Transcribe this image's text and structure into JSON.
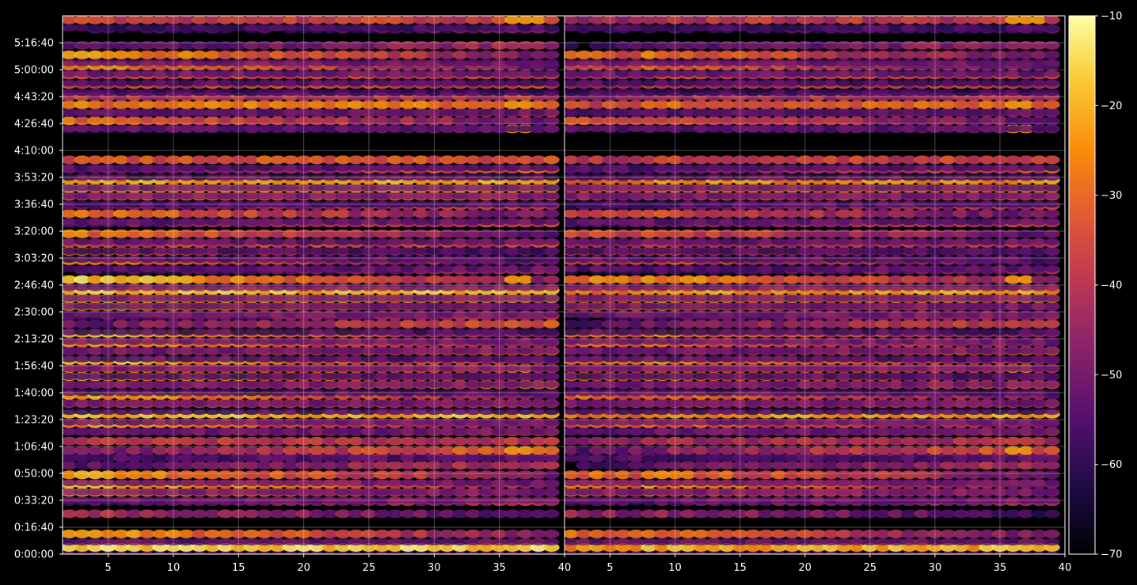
{
  "chart_data": {
    "type": "heatmap",
    "title": "",
    "xlabel": "",
    "ylabel": "",
    "panels": [
      {
        "name": "",
        "x_range": [
          1.5,
          40
        ],
        "x_ticks": [
          5,
          10,
          15,
          20,
          25,
          30,
          35,
          40
        ],
        "x_tick_labels": [
          "5",
          "10",
          "15",
          "20",
          "25",
          "30",
          "35",
          "40"
        ]
      },
      {
        "name": "",
        "x_range": [
          1.5,
          40
        ],
        "x_ticks": [
          5,
          10,
          15,
          20,
          25,
          30,
          35,
          40
        ],
        "x_tick_labels": [
          "5",
          "10",
          "15",
          "20",
          "25",
          "30",
          "35",
          "40"
        ]
      }
    ],
    "y_unit": "seconds",
    "y_range": [
      0,
      20000
    ],
    "y_ticks": [
      0,
      1000,
      2000,
      3000,
      4000,
      5000,
      6000,
      7000,
      8000,
      9000,
      10000,
      11000,
      12000,
      13000,
      14000,
      15000,
      16000,
      17000,
      18000,
      19000
    ],
    "y_tick_labels": [
      "0:00:00",
      "0:16:40",
      "0:33:20",
      "0:50:00",
      "1:06:40",
      "1:23:20",
      "1:40:00",
      "1:56:40",
      "2:13:20",
      "2:30:00",
      "2:46:40",
      "3:03:20",
      "3:20:00",
      "3:36:40",
      "3:53:20",
      "4:10:00",
      "4:26:40",
      "4:43:20",
      "5:00:00",
      "5:16:40"
    ],
    "grid": true,
    "colormap": "inferno",
    "colorbar": {
      "range": [
        -70,
        -10
      ],
      "ticks": [
        -70,
        -60,
        -50,
        -40,
        -30,
        -20,
        -10
      ],
      "tick_labels": [
        "−70",
        "−60",
        "−50",
        "−40",
        "−30",
        "−20",
        "−10"
      ]
    },
    "rows": [
      {
        "t": 250,
        "strength": 0.9,
        "profile": "flat",
        "hot": [
          36,
          37,
          38
        ]
      },
      {
        "t": 750,
        "strength": 0.8,
        "profile": "decay"
      },
      {
        "t": 1500,
        "strength": 0.5,
        "profile": "decay"
      },
      {
        "t": 1950,
        "strength": 0.4,
        "profile": "rise"
      },
      {
        "t": 2300,
        "strength": 0.82,
        "profile": "decay"
      },
      {
        "t": 2600,
        "strength": 0.88,
        "profile": "decay"
      },
      {
        "t": 2950,
        "strength": 0.82,
        "profile": "decay"
      },
      {
        "t": 3300,
        "strength": 0.45,
        "profile": "rise"
      },
      {
        "t": 3600,
        "strength": 0.35,
        "profile": "rise"
      },
      {
        "t": 3850,
        "strength": 0.6,
        "profile": "rise",
        "hot": [
          36,
          37
        ]
      },
      {
        "t": 4200,
        "strength": 0.5,
        "profile": "flat"
      },
      {
        "t": 4550,
        "strength": 0.45,
        "profile": "rise"
      },
      {
        "t": 4850,
        "strength": 0.8,
        "profile": "decay"
      },
      {
        "t": 5200,
        "strength": 0.85,
        "profile": "flat"
      },
      {
        "t": 5600,
        "strength": 0.55,
        "profile": "flat"
      },
      {
        "t": 5900,
        "strength": 0.8,
        "profile": "decay"
      },
      {
        "t": 6300,
        "strength": 0.6,
        "profile": "rise"
      },
      {
        "t": 6600,
        "strength": 0.85,
        "profile": "decay"
      },
      {
        "t": 6900,
        "strength": 0.6,
        "profile": "flat",
        "hot": [
          36,
          37
        ]
      },
      {
        "t": 7200,
        "strength": 0.9,
        "profile": "decay"
      },
      {
        "t": 7550,
        "strength": 0.6,
        "profile": "rise"
      },
      {
        "t": 7850,
        "strength": 0.8,
        "profile": "decay"
      },
      {
        "t": 8200,
        "strength": 0.85,
        "profile": "decay"
      },
      {
        "t": 8550,
        "strength": 0.55,
        "profile": "rise"
      },
      {
        "t": 8850,
        "strength": 0.4,
        "profile": "rise"
      },
      {
        "t": 9200,
        "strength": 0.85,
        "profile": "decay"
      },
      {
        "t": 9500,
        "strength": 0.8,
        "profile": "flat"
      },
      {
        "t": 9800,
        "strength": 0.85,
        "profile": "flat"
      },
      {
        "t": 10200,
        "strength": 0.9,
        "profile": "decay",
        "hot": [
          36,
          37
        ]
      },
      {
        "t": 10550,
        "strength": 0.35,
        "profile": "rise"
      },
      {
        "t": 10900,
        "strength": 0.7,
        "profile": "decay"
      },
      {
        "t": 11250,
        "strength": 0.65,
        "profile": "decay"
      },
      {
        "t": 11550,
        "strength": 0.55,
        "profile": "flat"
      },
      {
        "t": 11900,
        "strength": 0.7,
        "profile": "decay"
      },
      {
        "t": 12300,
        "strength": 0.5,
        "profile": "rise"
      },
      {
        "t": 12650,
        "strength": 0.7,
        "profile": "decay"
      },
      {
        "t": 12950,
        "strength": 0.45,
        "profile": "rise"
      },
      {
        "t": 13300,
        "strength": 0.6,
        "profile": "flat"
      },
      {
        "t": 13600,
        "strength": 0.85,
        "profile": "flat",
        "hot": [
          36,
          37
        ]
      },
      {
        "t": 13900,
        "strength": 0.8,
        "profile": "flat"
      },
      {
        "t": 14300,
        "strength": 0.55,
        "profile": "rise"
      },
      {
        "t": 14650,
        "strength": 0.6,
        "profile": "flat"
      },
      {
        "t": 15800,
        "strength": 0.3,
        "profile": "rise",
        "hot": [
          36,
          37
        ]
      },
      {
        "t": 16100,
        "strength": 0.7,
        "profile": "decay"
      },
      {
        "t": 16400,
        "strength": 0.45,
        "profile": "rise"
      },
      {
        "t": 16700,
        "strength": 0.7,
        "profile": "flat",
        "hot": [
          36,
          37
        ]
      },
      {
        "t": 17000,
        "strength": 0.5,
        "profile": "flat"
      },
      {
        "t": 17450,
        "strength": 0.55,
        "profile": "flat"
      },
      {
        "t": 17800,
        "strength": 0.55,
        "profile": "flat"
      },
      {
        "t": 18150,
        "strength": 0.75,
        "profile": "decay"
      },
      {
        "t": 18550,
        "strength": 0.8,
        "profile": "decay"
      },
      {
        "t": 18900,
        "strength": 0.4,
        "profile": "rise"
      },
      {
        "t": 19500,
        "strength": 0.25,
        "profile": "rise"
      },
      {
        "t": 19850,
        "strength": 0.55,
        "profile": "flat",
        "hot": [
          36,
          37,
          38
        ]
      }
    ]
  }
}
